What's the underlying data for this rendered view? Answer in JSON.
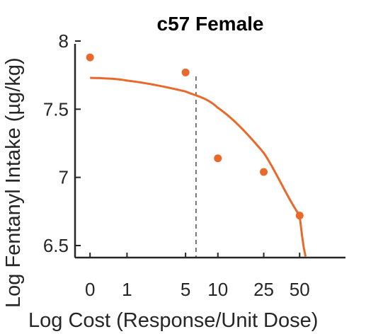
{
  "chart_data": {
    "type": "scatter",
    "title": "c57 Female",
    "xlabel": "Log Cost (Response/Unit Dose)",
    "ylabel": "Log Fentanyl Intake (µg/kg)",
    "x_tick_labels": [
      "0",
      "1",
      "5",
      "10",
      "25",
      "50"
    ],
    "y_ticks": [
      6.5,
      7,
      7.5,
      8
    ],
    "y_tick_labels": [
      "6.5",
      "7",
      "7.5",
      "8"
    ],
    "ylim": [
      6.42,
      8.0
    ],
    "x_scale": "log",
    "series": [
      {
        "points": [
          {
            "cost": 0,
            "intake": 7.88
          },
          {
            "cost": 5,
            "intake": 7.77
          },
          {
            "cost": 10,
            "intake": 7.14
          },
          {
            "cost": 25,
            "intake": 7.04
          },
          {
            "cost": 50,
            "intake": 6.72
          }
        ],
        "color": "#E8692A"
      }
    ],
    "fit_curve": {
      "color": "#E8692A",
      "cost": [
        0,
        1,
        5,
        10,
        25,
        50,
        56
      ],
      "intake": [
        7.73,
        7.71,
        7.63,
        7.51,
        7.18,
        6.72,
        6.42
      ]
    },
    "reference_line": {
      "cost": 6.3,
      "style": "dashed",
      "color": "#555555"
    },
    "grid": false,
    "legend": "none"
  }
}
